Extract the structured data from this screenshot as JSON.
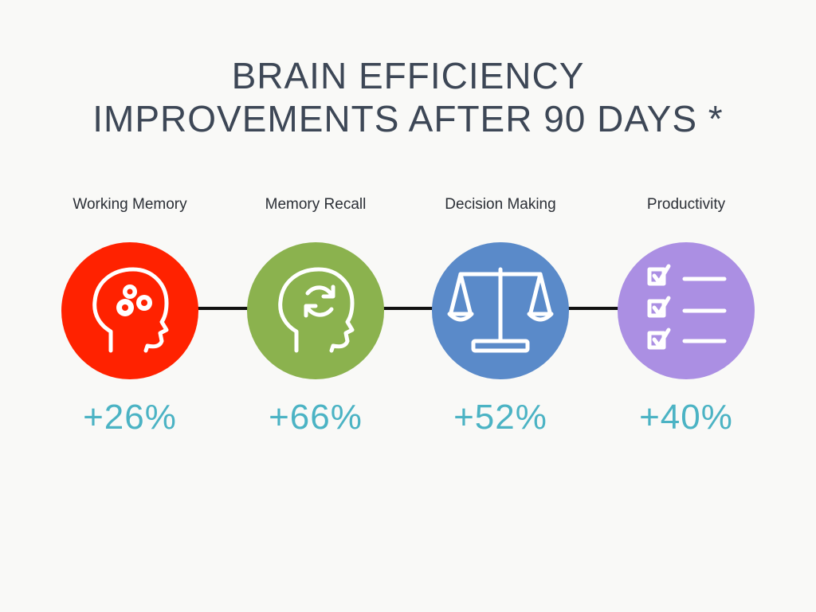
{
  "title": {
    "line1": "BRAIN EFFICIENCY",
    "line2": "IMPROVEMENTS AFTER 90 DAYS *"
  },
  "metrics": [
    {
      "label": "Working Memory",
      "value": "+26%",
      "color": "#ff2200",
      "icon": "head-gears-icon"
    },
    {
      "label": "Memory Recall",
      "value": "+66%",
      "color": "#8bb24e",
      "icon": "head-refresh-icon"
    },
    {
      "label": "Decision Making",
      "value": "+52%",
      "color": "#5a8ac9",
      "icon": "balance-scale-icon"
    },
    {
      "label": "Productivity",
      "value": "+40%",
      "color": "#ab8fe3",
      "icon": "checklist-icon"
    }
  ]
}
